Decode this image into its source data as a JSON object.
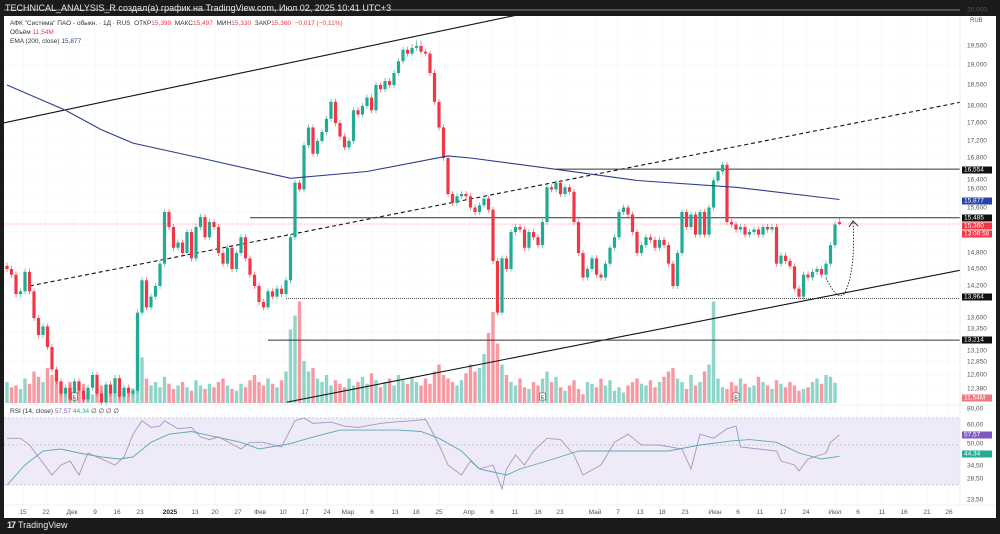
{
  "header": {
    "title": "TECHNICAL_ANALYSIS_R создал(а) график на TradingView.com, Июл 02, 2025 10:41 UTC+3"
  },
  "legend": {
    "symbol": "АФК \"Система\" ПАО - обыкн. · 1Д · RUS",
    "open_label": "ОТКР",
    "open": "15,399",
    "high_label": "МАКС",
    "high": "15,497",
    "low_label": "МИН",
    "low": "15,330",
    "close_label": "ЗАКР",
    "close": "15,360",
    "change": "−0,017 (−0,11%)",
    "volume_label": "Объём",
    "volume": "11,54M",
    "ema_label": "EMA (200, close)",
    "ema": "15,877",
    "rsi_label": "RSI (14, close)",
    "rsi": "57,57",
    "rsi_ma": "44,34",
    "rsi_extra": "∅ ∅ ∅ ∅"
  },
  "price_axis": {
    "currency": "RUB",
    "ticks": [
      "20,000",
      "19,500",
      "19,000",
      "18,500",
      "18,000",
      "17,600",
      "17,200",
      "16,800",
      "16,400",
      "16,000",
      "15,600",
      "14,800",
      "14,500",
      "14,200",
      "13,600",
      "13,350",
      "13,100",
      "12,850",
      "12,600",
      "12,380"
    ],
    "badges": {
      "level_16554": "16,554",
      "ema": "15,877",
      "level_15485": "15,485",
      "last_price": "15,360",
      "countdown": "13:08:58",
      "level_13964": "13,964",
      "level_13214": "13,214",
      "volume": "11,54M",
      "rsi": "57,57",
      "rsi_ma": "44,34"
    }
  },
  "rsi_axis": {
    "ticks": [
      "80,00",
      "60,00",
      "50,00",
      "34,50",
      "28,50",
      "23,50"
    ]
  },
  "x_axis": {
    "labels": [
      "15",
      "22",
      "Дек",
      "9",
      "16",
      "23",
      "2025",
      "13",
      "20",
      "27",
      "Фев",
      "10",
      "17",
      "24",
      "Мар",
      "6",
      "13",
      "18",
      "25",
      "Апр",
      "6",
      "11",
      "16",
      "23",
      "Май",
      "7",
      "13",
      "18",
      "23",
      "Июн",
      "6",
      "11",
      "17",
      "24",
      "Июл",
      "6",
      "11",
      "16",
      "21",
      "26"
    ]
  },
  "branding": {
    "logo_text": "TradingView"
  },
  "colors": {
    "up": "#22ab94",
    "down": "#f23645",
    "ema": "#2f3d8a",
    "rsi": "#a596c4",
    "rsi_ma": "#5fa8ae",
    "rsi_band": "#efeaf8"
  },
  "chart_data": {
    "type": "candlestick",
    "title": "АФК \"Система\" ПАО - обыкн. · 1Д · RUS",
    "timeframe": "1D",
    "ylabel": "RUB",
    "ylim": [
      12000,
      20000
    ],
    "closes": [
      14500,
      14400,
      14050,
      14100,
      14450,
      14100,
      13600,
      13300,
      13450,
      13100,
      12700,
      12500,
      12300,
      12400,
      12200,
      12500,
      12350,
      12200,
      12400,
      12600,
      12300,
      12150,
      12450,
      12300,
      12550,
      12250,
      12400,
      12300,
      12350,
      13700,
      14300,
      13800,
      14000,
      14200,
      14600,
      15600,
      15300,
      14900,
      15000,
      14800,
      15200,
      14700,
      15300,
      15500,
      15100,
      15400,
      15300,
      14800,
      14600,
      14900,
      14500,
      14800,
      15100,
      14700,
      14400,
      14200,
      13900,
      13800,
      14100,
      14000,
      14150,
      14050,
      14300,
      15100,
      16250,
      16100,
      17100,
      17500,
      16900,
      17200,
      17400,
      17700,
      18100,
      17600,
      17300,
      17050,
      17200,
      17900,
      17800,
      18000,
      18200,
      17900,
      18500,
      18400,
      18600,
      18500,
      18800,
      19100,
      19400,
      19300,
      19450,
      19500,
      19350,
      19300,
      18800,
      18100,
      17500,
      16800,
      16000,
      15800,
      15950,
      16000,
      15950,
      15700,
      15600,
      15750,
      15900,
      15650,
      14650,
      13700,
      14700,
      14500,
      15200,
      15300,
      15250,
      14900,
      15200,
      15100,
      14950,
      15400,
      16150,
      16100,
      16250,
      16000,
      16150,
      16050,
      15400,
      14800,
      14350,
      14500,
      14700,
      14400,
      14350,
      14600,
      14900,
      15100,
      15600,
      15700,
      15550,
      15200,
      14800,
      14950,
      15100,
      15050,
      14900,
      15050,
      14950,
      14600,
      14200,
      14800,
      15600,
      15300,
      15550,
      15150,
      15600,
      15150,
      15700,
      16300,
      16500,
      16650,
      15400,
      15350,
      15250,
      15300,
      15150,
      15200,
      15250,
      15150,
      15300,
      15250,
      15300,
      14600,
      14750,
      14650,
      14550,
      14150,
      14000,
      14400,
      14350,
      14450,
      14500,
      14400,
      14600,
      14950,
      15350,
      15360
    ],
    "last_ohlc": {
      "open": 15399,
      "high": 15497,
      "low": 15330,
      "close": 15360
    },
    "volumes_m": [
      12,
      9,
      10,
      8,
      14,
      11,
      18,
      15,
      12,
      20,
      16,
      14,
      10,
      8,
      12,
      9,
      7,
      11,
      6,
      5,
      9,
      10,
      8,
      7,
      5,
      6,
      4,
      5,
      8,
      38,
      26,
      14,
      10,
      12,
      9,
      15,
      11,
      8,
      10,
      12,
      9,
      7,
      13,
      10,
      8,
      11,
      9,
      12,
      14,
      10,
      8,
      7,
      11,
      9,
      13,
      16,
      12,
      10,
      14,
      11,
      9,
      13,
      18,
      42,
      50,
      58,
      24,
      18,
      20,
      14,
      12,
      16,
      10,
      13,
      11,
      9,
      14,
      10,
      12,
      15,
      11,
      17,
      13,
      9,
      12,
      14,
      10,
      16,
      13,
      11,
      15,
      12,
      10,
      14,
      11,
      18,
      22,
      16,
      14,
      12,
      10,
      13,
      17,
      22,
      18,
      20,
      28,
      40,
      52,
      34,
      22,
      16,
      12,
      10,
      14,
      9,
      8,
      12,
      10,
      14,
      18,
      12,
      15,
      9,
      7,
      10,
      13,
      8,
      5,
      12,
      11,
      9,
      14,
      10,
      13,
      7,
      9,
      6,
      10,
      12,
      14,
      11,
      10,
      13,
      9,
      12,
      15,
      18,
      20,
      14,
      12,
      8,
      16,
      10,
      12,
      18,
      22,
      58,
      14,
      9,
      8,
      12,
      10,
      14,
      11,
      9,
      10,
      15,
      12,
      10,
      8,
      13,
      11,
      9,
      12,
      10,
      7,
      8,
      9,
      12,
      14,
      11,
      16,
      15,
      11.54
    ],
    "ema200": [
      [
        0,
        18500
      ],
      [
        13,
        17900
      ],
      [
        21,
        17450
      ],
      [
        28,
        17150
      ],
      [
        43,
        16800
      ],
      [
        63,
        16350
      ],
      [
        80,
        16500
      ],
      [
        98,
        16850
      ],
      [
        103,
        16800
      ],
      [
        122,
        16550
      ],
      [
        140,
        16300
      ],
      [
        162,
        16150
      ],
      [
        185,
        15877
      ]
    ],
    "rsi14": [
      [
        0,
        55
      ],
      [
        3,
        55
      ],
      [
        5,
        50
      ],
      [
        7,
        44
      ],
      [
        10,
        35
      ],
      [
        12,
        40
      ],
      [
        14,
        42
      ],
      [
        16,
        35
      ],
      [
        18,
        46
      ],
      [
        21,
        43
      ],
      [
        24,
        40
      ],
      [
        26,
        44
      ],
      [
        28,
        58
      ],
      [
        30,
        68
      ],
      [
        32,
        63
      ],
      [
        34,
        64
      ],
      [
        35,
        68
      ],
      [
        38,
        62
      ],
      [
        41,
        63
      ],
      [
        43,
        56
      ],
      [
        45,
        54
      ],
      [
        47,
        56
      ],
      [
        52,
        48
      ],
      [
        54,
        52
      ],
      [
        57,
        52
      ],
      [
        61,
        49
      ],
      [
        64,
        68
      ],
      [
        66,
        70
      ],
      [
        68,
        66
      ],
      [
        72,
        67
      ],
      [
        75,
        64
      ],
      [
        78,
        63
      ],
      [
        83,
        66
      ],
      [
        86,
        67
      ],
      [
        90,
        68
      ],
      [
        93,
        69
      ],
      [
        94,
        63
      ],
      [
        96,
        50
      ],
      [
        98,
        40
      ],
      [
        101,
        35
      ],
      [
        103,
        42
      ],
      [
        105,
        38
      ],
      [
        108,
        40
      ],
      [
        110,
        28
      ],
      [
        111,
        38
      ],
      [
        113,
        45
      ],
      [
        115,
        40
      ],
      [
        117,
        47
      ],
      [
        120,
        55
      ],
      [
        123,
        54
      ],
      [
        126,
        45
      ],
      [
        128,
        35
      ],
      [
        132,
        40
      ],
      [
        135,
        52
      ],
      [
        138,
        58
      ],
      [
        141,
        50
      ],
      [
        145,
        50
      ],
      [
        150,
        48
      ],
      [
        152,
        38
      ],
      [
        154,
        58
      ],
      [
        157,
        55
      ],
      [
        160,
        62
      ],
      [
        162,
        64
      ],
      [
        163,
        49
      ],
      [
        167,
        48
      ],
      [
        171,
        47
      ],
      [
        172,
        42
      ],
      [
        175,
        40
      ],
      [
        176,
        37
      ],
      [
        178,
        43
      ],
      [
        182,
        46
      ],
      [
        183,
        52
      ],
      [
        185,
        57.57
      ]
    ],
    "rsi_ma": [
      [
        0,
        30
      ],
      [
        4,
        40
      ],
      [
        8,
        47
      ],
      [
        12,
        48
      ],
      [
        16,
        46
      ],
      [
        21,
        44
      ],
      [
        25,
        43
      ],
      [
        28,
        44
      ],
      [
        32,
        52
      ],
      [
        36,
        58
      ],
      [
        41,
        60
      ],
      [
        45,
        57
      ],
      [
        52,
        52
      ],
      [
        56,
        48
      ],
      [
        63,
        51
      ],
      [
        67,
        55
      ],
      [
        74,
        61
      ],
      [
        81,
        61
      ],
      [
        87,
        61
      ],
      [
        92,
        60
      ],
      [
        96,
        55
      ],
      [
        101,
        47
      ],
      [
        105,
        38
      ],
      [
        111,
        35
      ],
      [
        114,
        38
      ],
      [
        120,
        42
      ],
      [
        127,
        47
      ],
      [
        134,
        47
      ],
      [
        141,
        47
      ],
      [
        147,
        47
      ],
      [
        154,
        50
      ],
      [
        161,
        53
      ],
      [
        165,
        54
      ],
      [
        171,
        52
      ],
      [
        176,
        46
      ],
      [
        181,
        43
      ],
      [
        185,
        44.34
      ]
    ],
    "rsi_bands": [
      70,
      50,
      30
    ],
    "drawings": {
      "upper_channel": [
        [
          0,
          17620
        ],
        [
          92,
          19650
        ]
      ],
      "middle_channel_dashed": [
        [
          5,
          14200
        ],
        [
          210,
          18050
        ]
      ],
      "lower_channel": [
        [
          62,
          12150
        ],
        [
          210,
          14450
        ]
      ],
      "horizontal_levels": [
        {
          "price": 16554,
          "from_bar": 122,
          "style": "solid"
        },
        {
          "price": 15485,
          "from_bar": 54,
          "style": "solid"
        },
        {
          "price": 13964,
          "from_bar": 62,
          "style": "dotted"
        },
        {
          "price": 13214,
          "from_bar": 58,
          "style": "solid"
        }
      ],
      "earnings_markers": [
        15,
        119,
        162
      ],
      "earnings_label": "E"
    }
  }
}
